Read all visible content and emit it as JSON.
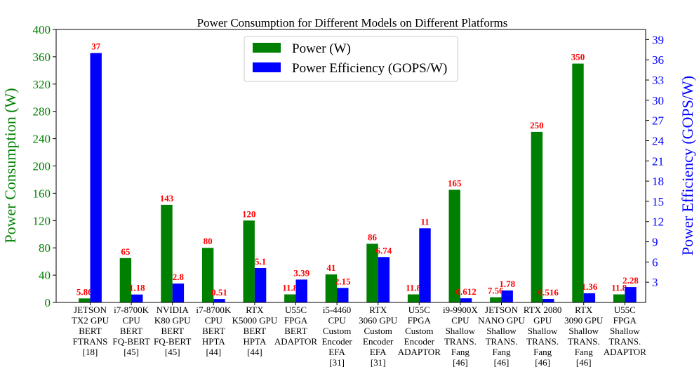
{
  "chart_data": {
    "type": "bar",
    "title": "Power Consumption for Different Models on Different Platforms",
    "ylabel_left": "Power Consumption (W)",
    "ylabel_right": "Power Efficiency (GOPS/W)",
    "ylim_left": [
      0,
      400
    ],
    "yticks_left": [
      "0",
      "40",
      "80",
      "120",
      "160",
      "200",
      "240",
      "280",
      "320",
      "360",
      "400"
    ],
    "ylim_right": [
      0,
      40.5
    ],
    "yticks_right": [
      "3",
      "6",
      "9",
      "12",
      "15",
      "18",
      "21",
      "24",
      "27",
      "30",
      "33",
      "36",
      "39"
    ],
    "legend_position": "upper-center",
    "categories": [
      [
        "JETSON",
        "TX2 GPU",
        "BERT",
        "FTRANS",
        "[18]"
      ],
      [
        "i7-8700K",
        "CPU",
        "BERT",
        "FQ-BERT",
        "[45]"
      ],
      [
        "NVIDIA",
        "K80 GPU",
        "BERT",
        "FQ-BERT",
        "[45]"
      ],
      [
        "i7-8700K",
        "CPU",
        "BERT",
        "HPTA",
        "[44]"
      ],
      [
        "RTX",
        "K5000 GPU",
        "BERT",
        "HPTA",
        "[44]"
      ],
      [
        "U55C",
        "FPGA",
        "BERT",
        "ADAPTOR"
      ],
      [
        "i5-4460",
        "CPU",
        "Custom",
        "Encoder",
        "EFA",
        "[31]"
      ],
      [
        "RTX",
        "3060 GPU",
        "Custom",
        "Encoder",
        "EFA",
        "[31]"
      ],
      [
        "U55C",
        "FPGA",
        "Custom",
        "Encoder",
        "ADAPTOR"
      ],
      [
        "i9-9900X",
        "CPU",
        "Shallow",
        "TRANS.",
        "Fang",
        "[46]"
      ],
      [
        "JETSON",
        "NANO GPU",
        "Shallow",
        "TRANS.",
        "Fang",
        "[46]"
      ],
      [
        "RTX 2080",
        "GPU",
        "Shallow",
        "TRANS.",
        "Fang",
        "[46]"
      ],
      [
        "RTX",
        "3090 GPU",
        "Shallow",
        "TRANS.",
        "Fang",
        "[46]"
      ],
      [
        "U55C",
        "FPGA",
        "Shallow",
        "TRANS.",
        "ADAPTOR"
      ]
    ],
    "series": [
      {
        "name": "Power (W)",
        "axis": "left",
        "color": "#008000",
        "values": [
          5.86,
          65,
          143,
          80,
          120,
          11.8,
          41,
          86,
          11.8,
          165,
          7.56,
          250,
          350,
          11.8
        ],
        "labels": [
          "5.86",
          "65",
          "143",
          "80",
          "120",
          "11.8",
          "41",
          "86",
          "11.8",
          "165",
          "7.56",
          "250",
          "350",
          "11.8"
        ]
      },
      {
        "name": "Power Efficiency (GOPS/W)",
        "axis": "right",
        "color": "#0000ff",
        "values": [
          37,
          1.18,
          2.8,
          0.51,
          5.1,
          3.39,
          2.15,
          6.74,
          11,
          0.612,
          1.78,
          0.516,
          1.36,
          2.28
        ],
        "labels": [
          "37",
          "1.18",
          "2.8",
          "0.51",
          "5.1",
          "3.39",
          "2.15",
          "6.74",
          "11",
          "0.612",
          "1.78",
          "0.516",
          "1.36",
          "2.28"
        ]
      }
    ]
  }
}
